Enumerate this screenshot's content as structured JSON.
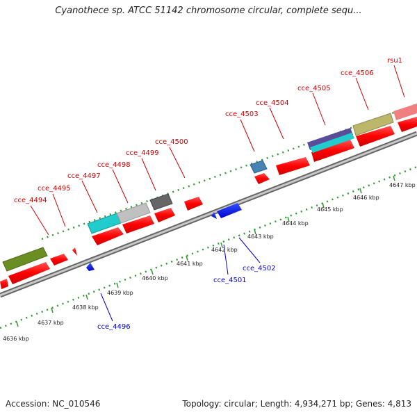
{
  "title": "Cyanothece sp. ATCC 51142 chromosome circular, complete sequ...",
  "footer": {
    "accession": "Accession: NC_010546",
    "summary": "Topology: circular; Length: 4,934,271 bp; Genes: 4,813"
  },
  "colors": {
    "forward_gene": "#ff0000",
    "reverse_gene": "#0000ee",
    "forward_label": "#cc0000",
    "reverse_label": "#0000cc",
    "backbone": "#8a8a8a",
    "tick": "#339933"
  },
  "scale_labels": [
    "4636 kbp",
    "4637 kbp",
    "4638 kbp",
    "4639 kbp",
    "4640 kbp",
    "4641 kbp",
    "4642 kbp",
    "4643 kbp",
    "4644 kbp",
    "4645 kbp",
    "4646 kbp",
    "4647 kbp"
  ],
  "forward_labels": [
    "cce_4494",
    "cce_4495",
    "cce_4497",
    "cce_4498",
    "cce_4499",
    "cce_4500",
    "cce_4503",
    "cce_4504",
    "cce_4505",
    "cce_4506",
    "rsu1"
  ],
  "reverse_labels": [
    "cce_4496",
    "cce_4501",
    "cce_4502"
  ]
}
